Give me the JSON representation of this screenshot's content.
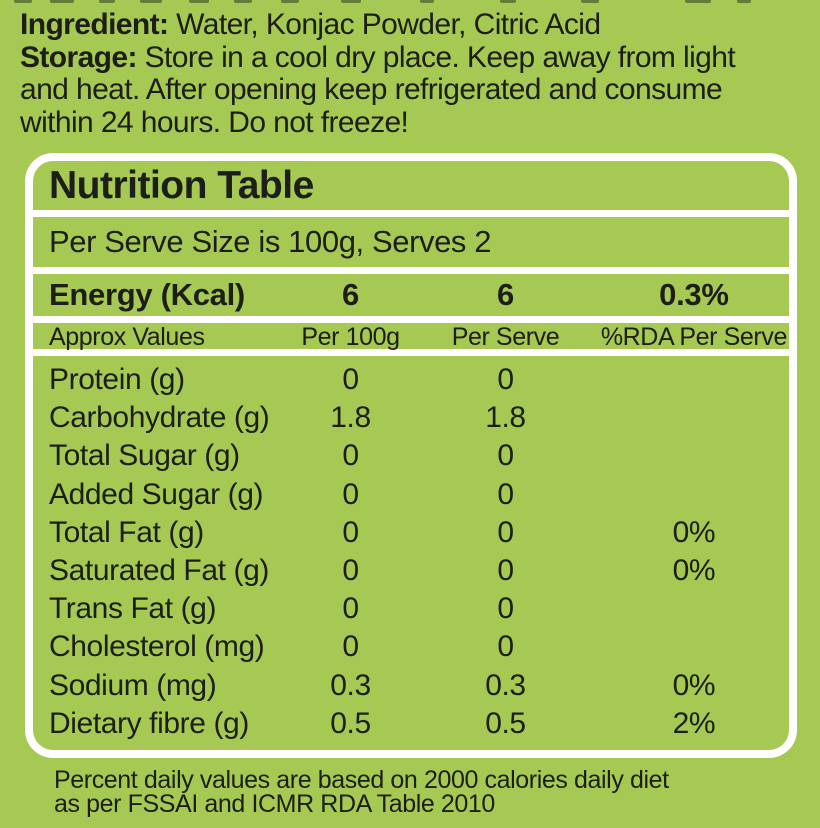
{
  "colors": {
    "background": "#a5c952",
    "text": "#1d1d1a",
    "table_panel": "#ffffff"
  },
  "top_text": {
    "line1_bold": "Ingredient:",
    "line1_rest": " Water, Konjac Powder, Citric Acid",
    "line2_bold": "Storage:",
    "line2_rest": " Store in a cool dry place. Keep away from light",
    "line3": "and heat. After opening keep refrigerated and consume",
    "line4": "within 24 hours. Do not freeze!"
  },
  "table": {
    "title": "Nutrition Table",
    "serving_info": "Per Serve Size is 100g, Serves 2",
    "energy_row": {
      "label": "Energy (Kcal)",
      "per_100g": "6",
      "per_serve": "6",
      "rda": "0.3%"
    },
    "columns": [
      "Approx Values",
      "Per 100g",
      "Per Serve",
      "%RDA Per Serve"
    ],
    "rows": [
      {
        "label": "Protein (g)",
        "per_100g": "0",
        "per_serve": "0",
        "rda": ""
      },
      {
        "label": "Carbohydrate (g)",
        "per_100g": "1.8",
        "per_serve": "1.8",
        "rda": ""
      },
      {
        "label": "Total Sugar (g)",
        "per_100g": "0",
        "per_serve": "0",
        "rda": ""
      },
      {
        "label": "Added Sugar (g)",
        "per_100g": "0",
        "per_serve": "0",
        "rda": ""
      },
      {
        "label": "Total Fat (g)",
        "per_100g": "0",
        "per_serve": "0",
        "rda": "0%"
      },
      {
        "label": "Saturated Fat (g)",
        "per_100g": "0",
        "per_serve": "0",
        "rda": "0%"
      },
      {
        "label": "Trans Fat (g)",
        "per_100g": "0",
        "per_serve": "0",
        "rda": ""
      },
      {
        "label": "Cholesterol (mg)",
        "per_100g": "0",
        "per_serve": "0",
        "rda": ""
      },
      {
        "label": "Sodium (mg)",
        "per_100g": "0.3",
        "per_serve": "0.3",
        "rda": "0%"
      },
      {
        "label": "Dietary fibre (g)",
        "per_100g": "0.5",
        "per_serve": "0.5",
        "rda": "2%"
      }
    ]
  },
  "footnote": {
    "line1": "Percent daily values are based on 2000 calories daily diet",
    "line2": "as per FSSAI and ICMR RDA Table 2010"
  }
}
